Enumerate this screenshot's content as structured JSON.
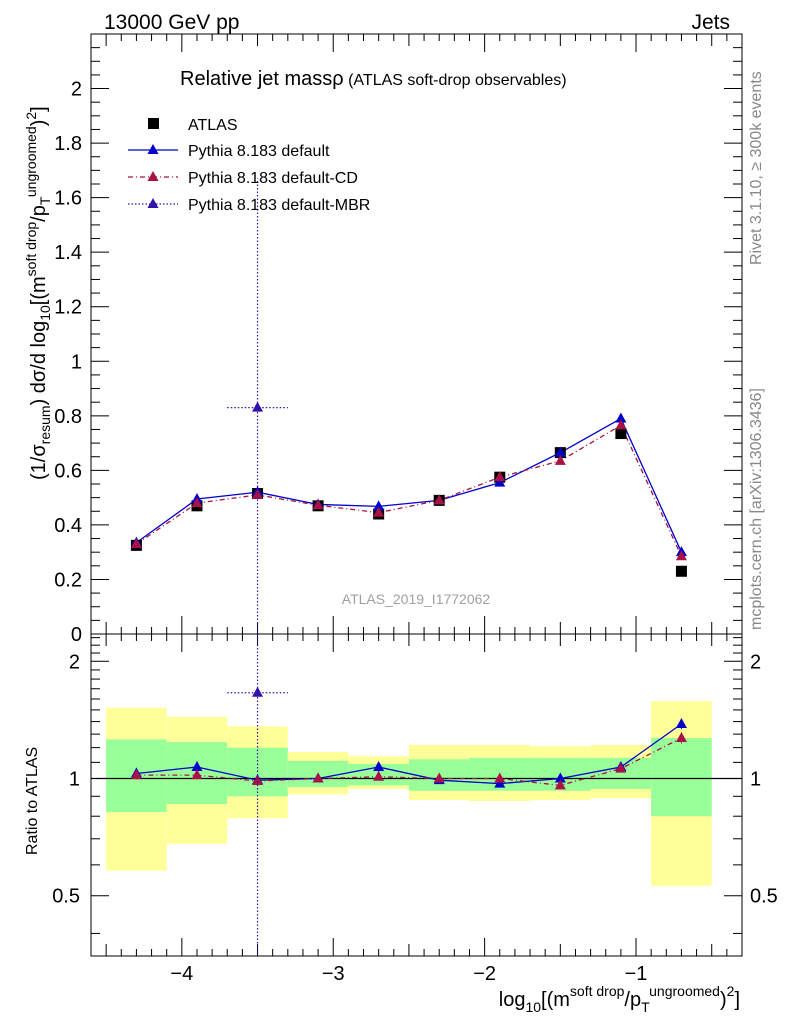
{
  "header": {
    "left": "13000 GeV pp",
    "right": "Jets",
    "side_rivet": "Rivet 3.1.10, ≥ 300k events",
    "side_mcplots": "mcplots.cern.ch [arXiv:1306.3436]"
  },
  "chart_data": [
    {
      "type": "scatter",
      "panel": "main",
      "title_main": "Relative jet massρ",
      "title_sub": " (ATLAS soft-drop observables)",
      "watermark": "ATLAS_2019_I1772062",
      "ylabel": "(1/σ_resum) dσ/d log10[(m^soft drop/pT^ungroomed)^2]",
      "xlim": [
        -4.6,
        -0.3
      ],
      "ylim": [
        0,
        2.2
      ],
      "yticks": [
        0,
        0.2,
        0.4,
        0.6,
        0.8,
        1,
        1.2,
        1.4,
        1.6,
        1.8,
        2
      ],
      "ytick_labels": [
        "0",
        "0.2",
        "0.4",
        "0.6",
        "0.8",
        "1",
        "1.2",
        "1.4",
        "1.6",
        "1.8",
        "2"
      ],
      "x": [
        -4.3,
        -3.9,
        -3.5,
        -3.1,
        -2.7,
        -2.3,
        -1.9,
        -1.5,
        -1.1,
        -0.7
      ],
      "x_low": [
        -4.5,
        -4.1,
        -3.7,
        -3.3,
        -2.9,
        -2.5,
        -2.1,
        -1.7,
        -1.3,
        -0.9
      ],
      "x_high": [
        -4.1,
        -3.7,
        -3.3,
        -2.9,
        -2.5,
        -2.1,
        -1.7,
        -1.3,
        -0.9,
        -0.5
      ],
      "series": [
        {
          "name": "ATLAS",
          "color": "#000000",
          "marker": "square",
          "line": "none",
          "values": [
            0.325,
            0.47,
            0.515,
            0.47,
            0.44,
            0.49,
            0.575,
            0.665,
            0.735,
            0.23
          ],
          "errors": [
            0.01,
            0.01,
            0.01,
            0.01,
            0.01,
            0.01,
            0.01,
            0.01,
            0.01,
            0.01
          ]
        },
        {
          "name": "Pythia 8.183 default",
          "color": "#0000cc",
          "marker": "triangle",
          "line": "solid",
          "values": [
            0.335,
            0.495,
            0.52,
            0.475,
            0.468,
            0.49,
            0.555,
            0.665,
            0.79,
            0.3
          ],
          "errors": [
            0.01,
            0.015,
            0.012,
            0.012,
            0.015,
            0.012,
            0.012,
            0.012,
            0.015,
            0.01
          ]
        },
        {
          "name": "Pythia 8.183 default-CD",
          "color": "#aa1144",
          "marker": "triangle",
          "line": "dashed",
          "values": [
            0.33,
            0.48,
            0.51,
            0.472,
            0.445,
            0.49,
            0.575,
            0.635,
            0.765,
            0.285
          ],
          "errors": [
            0.01,
            0.01,
            0.01,
            0.01,
            0.01,
            0.01,
            0.01,
            0.01,
            0.015,
            0.01
          ]
        },
        {
          "name": "Pythia 8.183 default-MBR",
          "color": "#3311aa",
          "marker": "triangle",
          "line": "dotted",
          "points": [
            {
              "x": -3.5,
              "x_low": -3.7,
              "x_high": -3.3,
              "y": 0.83,
              "err_low": 0.83,
              "err_high": 0.84
            }
          ]
        }
      ],
      "legend_position": "top-left"
    },
    {
      "type": "scatter",
      "panel": "ratio",
      "ylabel": "Ratio to ATLAS",
      "xlabel": "log10[(m^soft drop/pT^ungroomed)^2]",
      "xlim": [
        -4.6,
        -0.3
      ],
      "ylim": [
        0.35,
        2.35
      ],
      "yticks": [
        0.5,
        1,
        2
      ],
      "ytick_labels": [
        "0.5",
        "1",
        "2"
      ],
      "xticks": [
        -4,
        -3,
        -2,
        -1
      ],
      "xtick_labels": [
        "−4",
        "−3",
        "−2",
        "−1"
      ],
      "band_yellow": {
        "low": [
          0.58,
          0.68,
          0.79,
          0.91,
          0.94,
          0.88,
          0.875,
          0.88,
          0.89,
          0.53
        ],
        "high": [
          1.52,
          1.44,
          1.36,
          1.17,
          1.14,
          1.22,
          1.22,
          1.21,
          1.22,
          1.58
        ]
      },
      "band_green": {
        "low": [
          0.82,
          0.86,
          0.9,
          0.95,
          0.96,
          0.93,
          0.93,
          0.93,
          0.94,
          0.8
        ],
        "high": [
          1.26,
          1.24,
          1.2,
          1.11,
          1.09,
          1.12,
          1.13,
          1.13,
          1.13,
          1.27
        ]
      },
      "series": [
        {
          "name": "Pythia 8.183 default",
          "color": "#0000cc",
          "values": [
            1.03,
            1.07,
            0.99,
            1.0,
            1.07,
            0.99,
            0.97,
            1.0,
            1.07,
            1.38
          ],
          "errors": [
            0.035,
            0.035,
            0.02,
            0.02,
            0.03,
            0.02,
            0.02,
            0.02,
            0.02,
            0.04
          ]
        },
        {
          "name": "Pythia 8.183 default-CD",
          "color": "#aa1144",
          "values": [
            1.02,
            1.02,
            0.985,
            1.0,
            1.01,
            1.0,
            1.0,
            0.96,
            1.06,
            1.27
          ],
          "errors": [
            0.025,
            0.025,
            0.02,
            0.02,
            0.02,
            0.02,
            0.02,
            0.02,
            0.02,
            0.04
          ]
        },
        {
          "name": "Pythia 8.183 default-MBR",
          "color": "#3311aa",
          "points": [
            {
              "x": -3.5,
              "x_low": -3.7,
              "x_high": -3.3,
              "y": 1.66
            }
          ]
        }
      ]
    }
  ]
}
